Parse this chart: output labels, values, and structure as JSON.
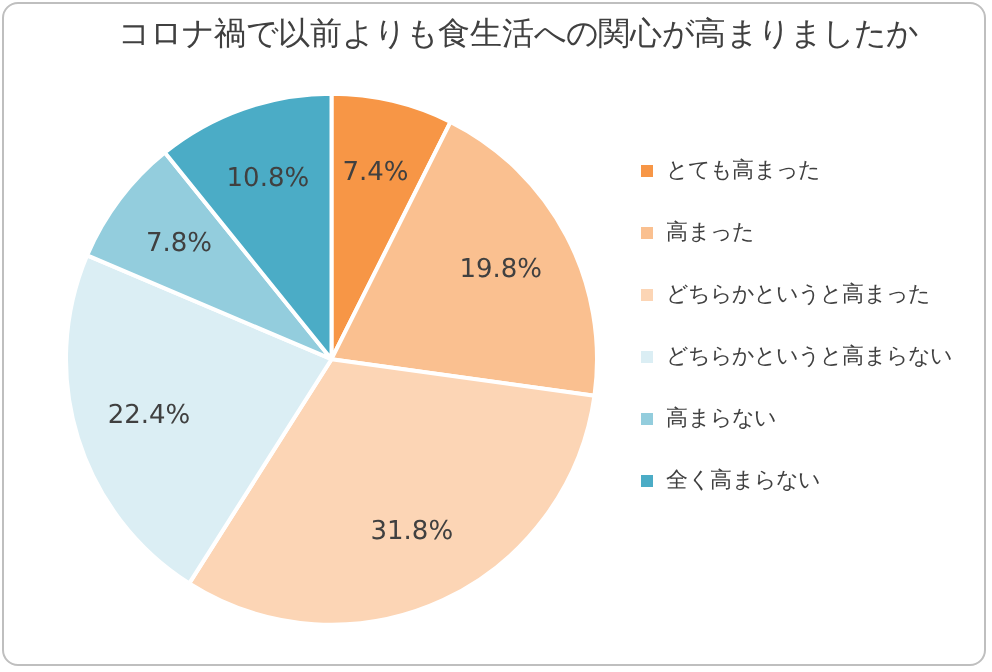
{
  "chart_data": {
    "type": "pie",
    "title": "コロナ禍で以前よりも食生活への関心が高まりましたか",
    "categories": [
      "とても高まった",
      "高まった",
      "どちらかというと高まった",
      "どちらかというと高まらない",
      "高まらない",
      "全く高まらない"
    ],
    "values": [
      7.4,
      19.8,
      31.8,
      22.4,
      7.8,
      10.8
    ],
    "colors": [
      "#f79646",
      "#fac090",
      "#fcd5b5",
      "#dbeef4",
      "#93cddd",
      "#4bacc6"
    ],
    "value_labels": [
      "7.4%",
      "19.8%",
      "31.8%",
      "22.4%",
      "7.8%",
      "10.8%"
    ],
    "legend": "right"
  }
}
